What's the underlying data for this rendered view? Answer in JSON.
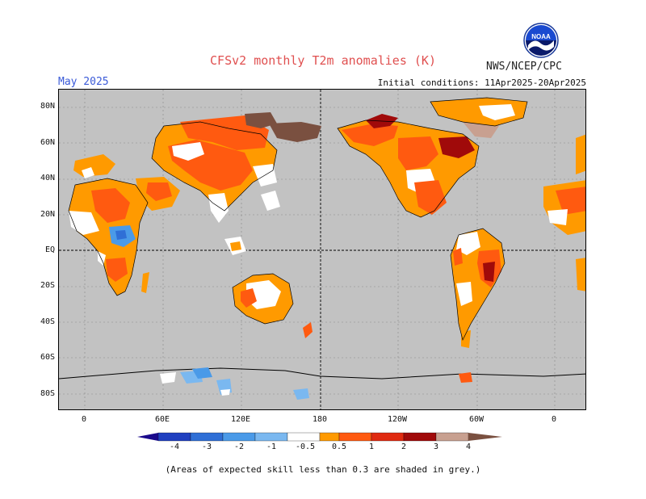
{
  "header": {
    "title": "CFSv2 monthly T2m anomalies (K)",
    "month": "May 2025",
    "agency": "NWS/NCEP/CPC",
    "initial_conditions": "Initial conditions: 11Apr2025-20Apr2025",
    "logo_text": "NOAA"
  },
  "axes": {
    "lat_labels": [
      "80N",
      "60N",
      "40N",
      "20N",
      "EQ",
      "20S",
      "40S",
      "60S",
      "80S"
    ],
    "lon_labels": [
      "0",
      "60E",
      "120E",
      "180",
      "120W",
      "60W",
      "0"
    ]
  },
  "colorbar": {
    "labels": [
      "-4",
      "-3",
      "-2",
      "-1",
      "-0.5",
      "0.5",
      "1",
      "2",
      "3",
      "4"
    ],
    "colors": [
      "#1a0a8c",
      "#2040c0",
      "#2f6fd6",
      "#4a9ae8",
      "#7ab8f0",
      "#ffffff",
      "#ff9a00",
      "#ff5a10",
      "#e02a10",
      "#a00a0a",
      "#c8a090",
      "#7a5040"
    ]
  },
  "footnote": "(Areas of expected skill less than 0.3 are shaded in grey.)"
}
